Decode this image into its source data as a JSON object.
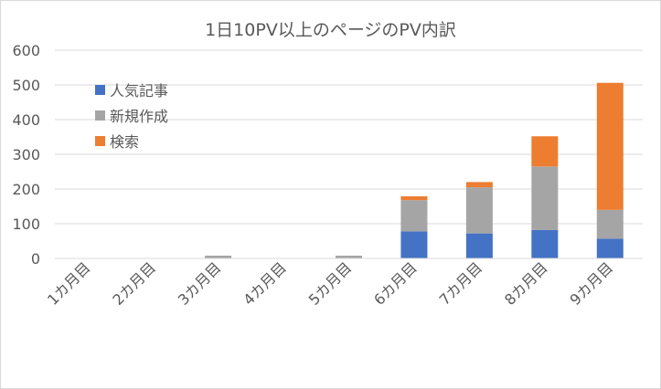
{
  "chart_data": {
    "type": "bar",
    "stacked": true,
    "title": "1日10PV以上のページのPV内訳",
    "xlabel": "",
    "ylabel": "",
    "categories": [
      "1カ月目",
      "2カ月目",
      "3カ月目",
      "4カ月目",
      "5カ月目",
      "6カ月目",
      "7カ月目",
      "8カ月目",
      "9カ月目"
    ],
    "ylim": [
      0,
      600
    ],
    "yticks": [
      0,
      100,
      200,
      300,
      400,
      500,
      600
    ],
    "grid": true,
    "legend_position": "top-left",
    "series": [
      {
        "name": "人気記事",
        "color": "#4472c4",
        "values": [
          0,
          0,
          0,
          0,
          0,
          78,
          72,
          82,
          57
        ]
      },
      {
        "name": "新規作成",
        "color": "#a5a5a5",
        "values": [
          0,
          0,
          8,
          0,
          8,
          90,
          133,
          183,
          83
        ]
      },
      {
        "name": "検索",
        "color": "#ed7d31",
        "values": [
          0,
          0,
          0,
          0,
          0,
          11,
          15,
          87,
          366
        ]
      }
    ]
  }
}
